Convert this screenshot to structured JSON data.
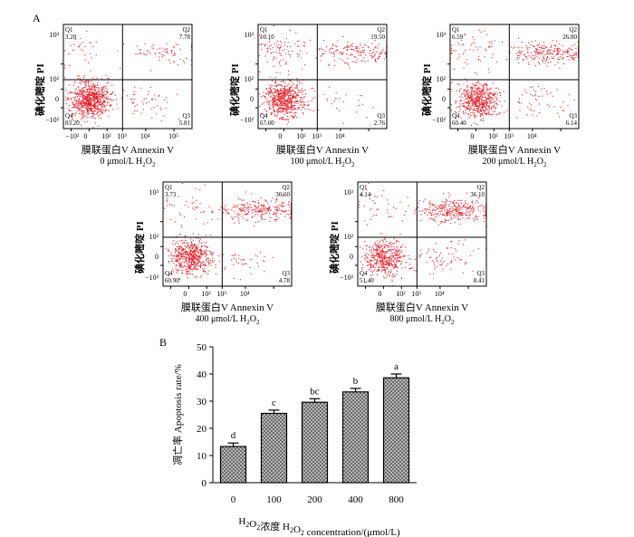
{
  "panel_labels": {
    "a": "A",
    "b": "B"
  },
  "colors": {
    "dots": "#e8161f",
    "axis": "#000000",
    "bar_fill": "#6b6b6b"
  },
  "flow": {
    "y_axis_label": "碘化嘧啶 PI",
    "x_axis_label": "膜联蛋白V Annexin V",
    "y_ticks": [
      "10³",
      "10²",
      "0",
      "−10²"
    ],
    "x_ticks": [
      "−10²",
      "0",
      "10²",
      "10³",
      "10⁴",
      "10⁵"
    ],
    "quadrant_names": [
      "Q1",
      "Q2",
      "Q3",
      "Q4"
    ]
  },
  "chart_data": [
    {
      "type": "scatter",
      "panel": "A",
      "title": "",
      "xlabel": "膜联蛋白V Annexin V",
      "ylabel": "碘化嘧啶 PI",
      "note": "flow cytometry quadrant percentages",
      "series": [
        {
          "name": "0 μmol/L H2O2",
          "label_main": "0 μmol/L H",
          "Q1": "3.20",
          "Q2": "7.78",
          "Q3": "5.81",
          "Q4": "83.20"
        },
        {
          "name": "100 μmol/L H2O2",
          "label_main": "100 μmol/L H",
          "Q1": "10.10",
          "Q2": "19.50",
          "Q3": "2.76",
          "Q4": "67.60"
        },
        {
          "name": "200 μmol/L H2O2",
          "label_main": "200 μmol/L H",
          "Q1": "6.59",
          "Q2": "26.80",
          "Q3": "6.14",
          "Q4": "60.40"
        },
        {
          "name": "400 μmol/L H2O2",
          "label_main": "400 μmol/L H",
          "Q1": "3.73",
          "Q2": "30.60",
          "Q3": "4.78",
          "Q4": "60.90"
        },
        {
          "name": "800 μmol/L H2O2",
          "label_main": "800 μmol/L H",
          "Q1": "4.14",
          "Q2": "36.10",
          "Q3": "8.41",
          "Q4": "51.40"
        }
      ]
    },
    {
      "type": "bar",
      "panel": "B",
      "categories": [
        "0",
        "100",
        "200",
        "400",
        "800"
      ],
      "values": [
        13.3,
        25.5,
        29.6,
        33.4,
        38.6
      ],
      "errors": [
        1.3,
        1.2,
        1.3,
        1.3,
        1.4
      ],
      "significance": [
        "d",
        "c",
        "bc",
        "b",
        "a"
      ],
      "xlabel": "H2O2浓度 H2O2 concentration/(μmol/L)",
      "ylabel": "凋亡率 Apoptosis rate/%",
      "ylim": [
        0,
        50
      ],
      "yticks": [
        0,
        10,
        20,
        30,
        40,
        50
      ]
    }
  ]
}
